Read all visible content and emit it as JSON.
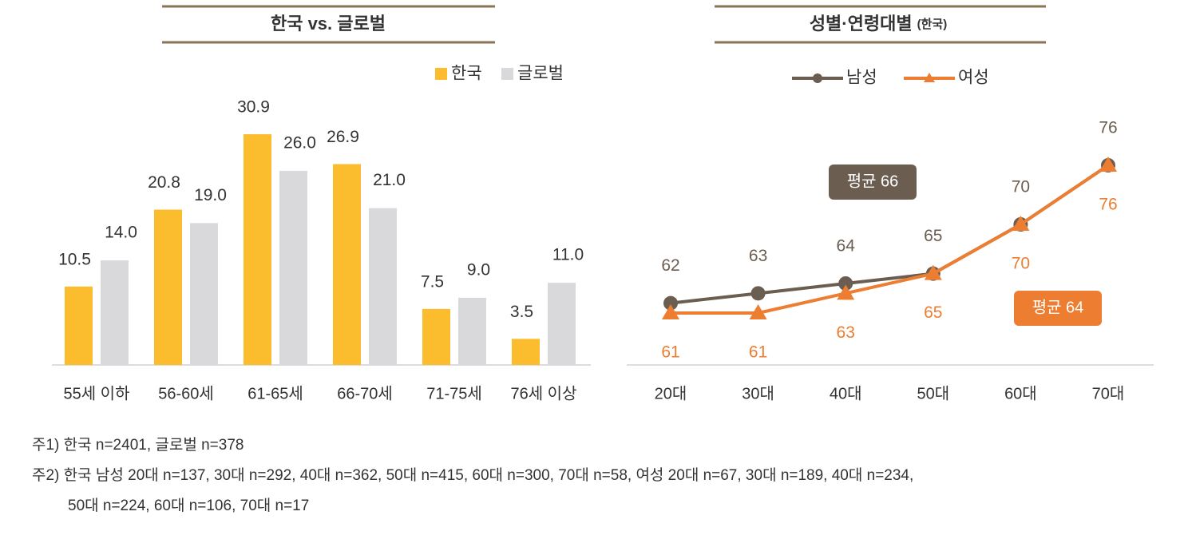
{
  "chart_data": [
    {
      "type": "bar",
      "title": "한국 vs. 글로벌",
      "categories": [
        "55세 이하",
        "56-60세",
        "61-65세",
        "66-70세",
        "71-75세",
        "76세 이상"
      ],
      "series": [
        {
          "name": "한국",
          "color": "#fbbd2e",
          "values": [
            10.5,
            20.8,
            30.9,
            26.9,
            7.5,
            3.5
          ]
        },
        {
          "name": "글로벌",
          "color": "#d9d9db",
          "values": [
            14,
            19,
            26,
            21,
            9,
            11
          ],
          "value_labels": [
            "14.0",
            "19.0",
            "26.0",
            "21.0",
            "9.0",
            "11.0"
          ]
        }
      ],
      "legend": "top-right"
    },
    {
      "type": "line",
      "title": "성별·연령대별",
      "subtitle": "(한국)",
      "categories": [
        "20대",
        "30대",
        "40대",
        "50대",
        "60대",
        "70대"
      ],
      "series": [
        {
          "name": "남성",
          "color": "#6b5e51",
          "marker": "circle",
          "values": [
            62,
            63,
            64,
            65,
            70,
            76
          ]
        },
        {
          "name": "여성",
          "color": "#ed7d31",
          "marker": "triangle",
          "values": [
            61,
            61,
            63,
            65,
            70,
            76
          ]
        }
      ],
      "annotations": [
        {
          "text": "평균 66",
          "color": "#6b5e51"
        },
        {
          "text": "평균 64",
          "color": "#ed7d31"
        }
      ],
      "legend": "top"
    }
  ],
  "notes": [
    "주1) 한국 n=2401, 글로벌 n=378",
    "주2) 한국 남성 20대 n=137, 30대 n=292, 40대 n=362, 50대 n=415, 60대 n=300, 70대 n=58, 여성 20대 n=67, 30대 n=189, 40대 n=234,",
    "50대 n=224, 60대 n=106, 70대 n=17"
  ]
}
